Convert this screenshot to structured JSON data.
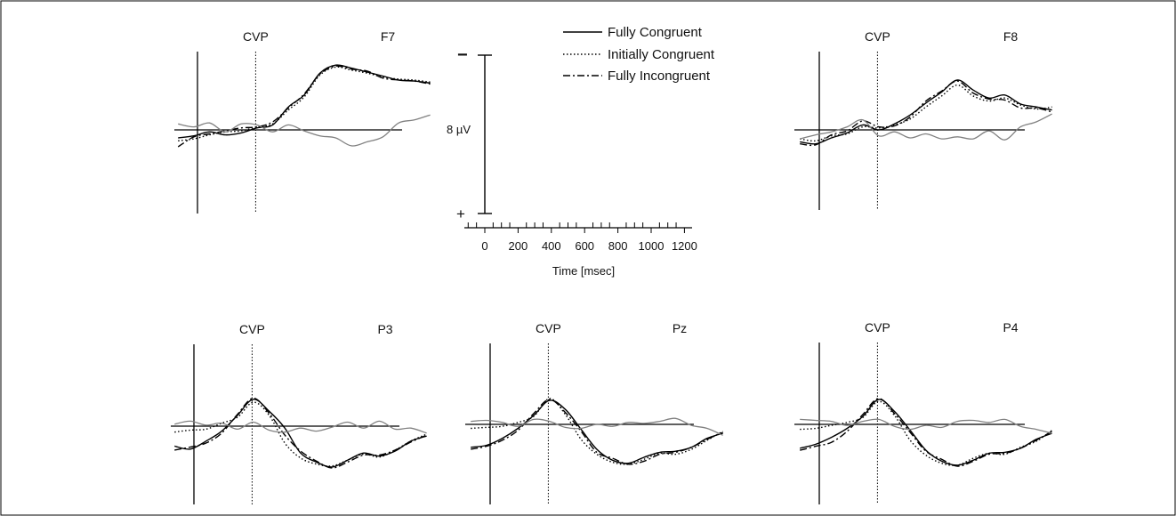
{
  "chart_data": {
    "type": "line",
    "legend": {
      "placement": "top-center",
      "entries": [
        {
          "label": "Fully Congruent",
          "style": "solid"
        },
        {
          "label": "Initially Congruent",
          "style": "dotted"
        },
        {
          "label": "Fully Incongruent",
          "style": "dash-dot"
        }
      ]
    },
    "scale": {
      "amplitude_label": "8 µV",
      "minus_label": "−",
      "plus_label": "+",
      "negative_up": true,
      "x_ticks": [
        "0",
        "200",
        "400",
        "600",
        "800",
        "1000",
        "1200"
      ],
      "xlabel": "Time [msec]",
      "xlim": [
        -100,
        1200
      ]
    },
    "colors": {
      "axis": "#000000",
      "difference": "#808080",
      "traces": "#000000"
    },
    "panels": [
      {
        "channel": "F7",
        "marker_label": "CVP",
        "marker_ms": 300,
        "series": [
          {
            "style": "solid",
            "values": [
              0.8,
              0.6,
              0.2,
              0.5,
              0.3,
              -0.2,
              -0.5,
              -2.3,
              -3.5,
              -5.7,
              -6.5,
              -6.2,
              -5.8,
              -5.4,
              -5.0,
              -4.9,
              -4.7
            ]
          },
          {
            "style": "dotted",
            "values": [
              1.1,
              0.9,
              0.5,
              0.2,
              0.1,
              -0.3,
              -0.6,
              -2.0,
              -3.3,
              -5.5,
              -6.3,
              -6.0,
              -5.7,
              -5.3,
              -5.1,
              -5.0,
              -4.8
            ]
          },
          {
            "style": "dash-dot",
            "values": [
              1.7,
              0.7,
              0.4,
              0.1,
              -0.2,
              -0.3,
              -0.8,
              -2.2,
              -3.6,
              -5.6,
              -6.4,
              -6.1,
              -5.9,
              -5.2,
              -5.0,
              -4.9,
              -4.6
            ]
          },
          {
            "style": "difference",
            "values": [
              -0.6,
              -0.3,
              -0.7,
              0.2,
              -0.6,
              -0.5,
              0.2,
              -0.5,
              0.1,
              0.6,
              0.8,
              1.6,
              1.2,
              0.7,
              -0.7,
              -1.0,
              -1.5
            ]
          }
        ]
      },
      {
        "channel": "F8",
        "marker_label": "CVP",
        "marker_ms": 300,
        "series": [
          {
            "style": "solid",
            "values": [
              1.2,
              1.4,
              0.8,
              0.3,
              -0.5,
              0.0,
              -0.6,
              -1.5,
              -2.7,
              -3.8,
              -5.0,
              -4.0,
              -3.2,
              -3.5,
              -2.6,
              -2.3,
              -2.0
            ]
          },
          {
            "style": "dotted",
            "values": [
              0.9,
              1.1,
              0.6,
              0.4,
              -0.3,
              -0.2,
              -0.5,
              -1.1,
              -2.3,
              -3.4,
              -4.5,
              -3.4,
              -2.9,
              -3.2,
              -2.5,
              -2.1,
              -2.3
            ]
          },
          {
            "style": "dash-dot",
            "values": [
              1.4,
              1.5,
              0.5,
              0.1,
              -0.9,
              -0.3,
              -0.4,
              -1.3,
              -2.9,
              -3.9,
              -4.9,
              -3.7,
              -3.1,
              -3.0,
              -2.2,
              -2.2,
              -1.8
            ]
          },
          {
            "style": "difference",
            "values": [
              0.9,
              0.5,
              0.2,
              -0.3,
              -1.0,
              0.6,
              0.2,
              0.8,
              0.4,
              0.9,
              0.7,
              0.9,
              0.1,
              1.0,
              -0.3,
              -0.8,
              -1.6
            ]
          }
        ]
      },
      {
        "channel": "P3",
        "marker_label": "CVP",
        "marker_ms": 300,
        "series": [
          {
            "style": "solid",
            "values": [
              2.0,
              2.3,
              1.5,
              0.5,
              -1.1,
              -2.7,
              -1.5,
              0.2,
              2.7,
              3.6,
              4.1,
              3.4,
              2.7,
              3.0,
              2.5,
              1.5,
              1.0
            ]
          },
          {
            "style": "dotted",
            "values": [
              0.6,
              0.4,
              0.3,
              -0.3,
              -0.9,
              -2.4,
              -1.1,
              1.7,
              3.2,
              3.8,
              4.0,
              3.4,
              2.8,
              3.1,
              2.4,
              1.5,
              0.8
            ]
          },
          {
            "style": "dash-dot",
            "values": [
              2.4,
              2.1,
              1.7,
              0.7,
              -1.2,
              -2.8,
              -1.3,
              0.9,
              2.5,
              3.5,
              4.2,
              3.6,
              2.9,
              2.9,
              2.4,
              1.6,
              0.9
            ]
          },
          {
            "style": "difference",
            "values": [
              -0.2,
              -0.5,
              -0.1,
              -0.3,
              0.3,
              -0.4,
              0.4,
              0.6,
              0.2,
              0.5,
              0.1,
              -0.4,
              0.2,
              -0.5,
              0.3,
              0.2,
              0.7
            ]
          }
        ]
      },
      {
        "channel": "Pz",
        "marker_label": "CVP",
        "marker_ms": 300,
        "series": [
          {
            "style": "solid",
            "values": [
              2.3,
              2.1,
              1.4,
              0.4,
              -0.9,
              -2.4,
              -1.5,
              0.5,
              2.5,
              3.6,
              3.9,
              3.3,
              2.8,
              2.7,
              2.3,
              1.4,
              0.9
            ]
          },
          {
            "style": "dotted",
            "values": [
              0.4,
              0.3,
              0.2,
              -0.2,
              -0.8,
              -2.6,
              -1.0,
              1.5,
              3.0,
              3.8,
              4.0,
              3.5,
              2.9,
              3.0,
              2.5,
              1.6,
              0.7
            ]
          },
          {
            "style": "dash-dot",
            "values": [
              2.5,
              2.2,
              1.6,
              0.6,
              -1.1,
              -2.5,
              -1.2,
              0.7,
              2.8,
              3.4,
              4.0,
              3.7,
              3.0,
              2.8,
              2.3,
              1.5,
              0.8
            ]
          },
          {
            "style": "difference",
            "values": [
              -0.3,
              -0.4,
              -0.2,
              0.2,
              -0.5,
              -0.3,
              0.3,
              0.4,
              0.0,
              0.2,
              -0.2,
              -0.1,
              -0.3,
              -0.6,
              0.1,
              0.4,
              1.1
            ]
          }
        ]
      },
      {
        "channel": "P4",
        "marker_label": "CVP",
        "marker_ms": 300,
        "series": [
          {
            "style": "solid",
            "values": [
              2.4,
              2.0,
              1.3,
              0.4,
              -0.8,
              -2.5,
              -1.3,
              0.6,
              2.6,
              3.7,
              4.1,
              3.6,
              2.9,
              2.8,
              2.4,
              1.5,
              0.9
            ]
          },
          {
            "style": "dotted",
            "values": [
              0.5,
              0.4,
              0.1,
              -0.2,
              -0.7,
              -2.3,
              -0.9,
              1.6,
              3.1,
              3.9,
              4.1,
              3.4,
              2.9,
              3.0,
              2.3,
              1.7,
              0.6
            ]
          },
          {
            "style": "dash-dot",
            "values": [
              2.6,
              2.2,
              1.8,
              0.7,
              -1.0,
              -2.6,
              -1.1,
              0.8,
              2.7,
              3.5,
              4.2,
              3.7,
              3.0,
              2.9,
              2.4,
              1.6,
              0.7
            ]
          },
          {
            "style": "difference",
            "values": [
              -0.5,
              -0.4,
              -0.3,
              0.1,
              -0.3,
              -0.5,
              0.2,
              0.5,
              0.1,
              0.3,
              -0.3,
              -0.4,
              -0.2,
              -0.5,
              0.2,
              0.5,
              0.9
            ]
          }
        ]
      }
    ]
  }
}
